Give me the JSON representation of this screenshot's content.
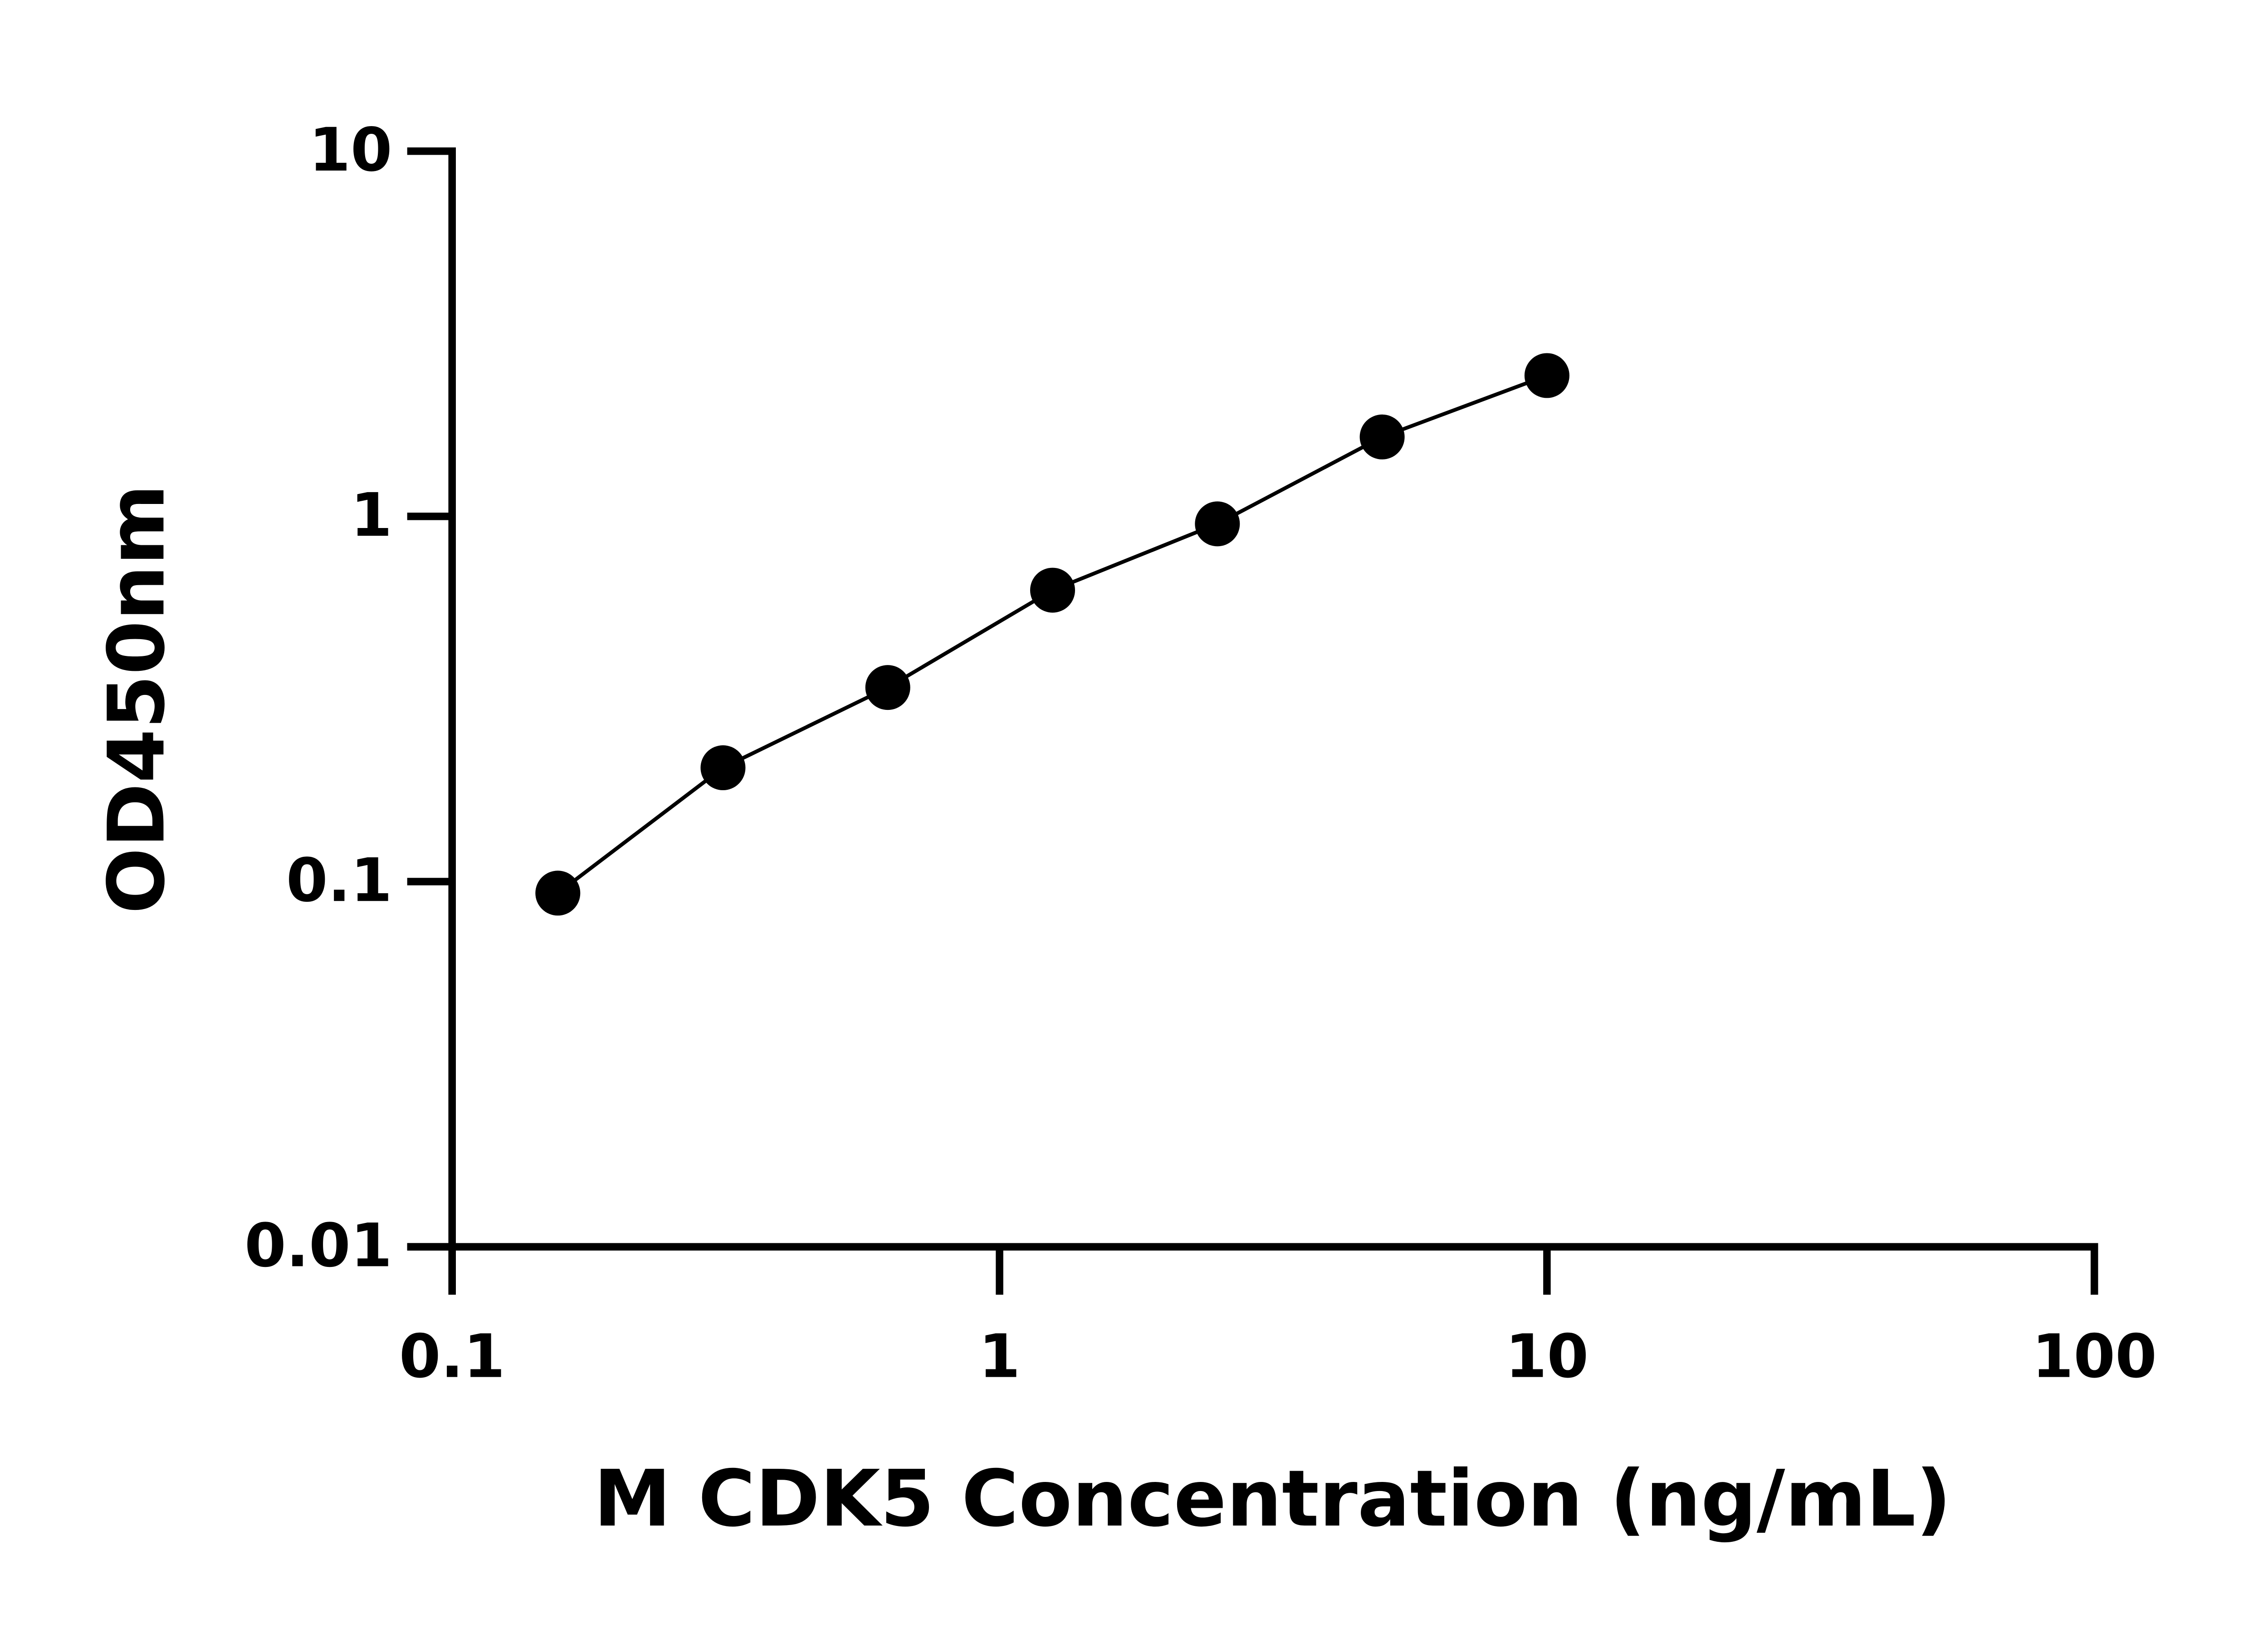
{
  "chart_data": {
    "type": "scatter",
    "x_label": "M CDK5 Concentration (ng/mL)",
    "y_label": "OD450nm",
    "x": [
      0.156,
      0.3125,
      0.625,
      1.25,
      2.5,
      5,
      10
    ],
    "series": [
      {
        "color": "#000000",
        "values": [
          0.093,
          0.205,
          0.34,
          0.628,
          0.954,
          1.65,
          2.43
        ]
      }
    ],
    "xlim": [
      0.1,
      100
    ],
    "ylim": [
      0.01,
      10
    ],
    "xticks": [
      0.1,
      1,
      10,
      100
    ],
    "yticks": [
      0.01,
      0.1,
      1,
      10
    ],
    "xscale": "log",
    "yscale": "log",
    "grid": false
  }
}
